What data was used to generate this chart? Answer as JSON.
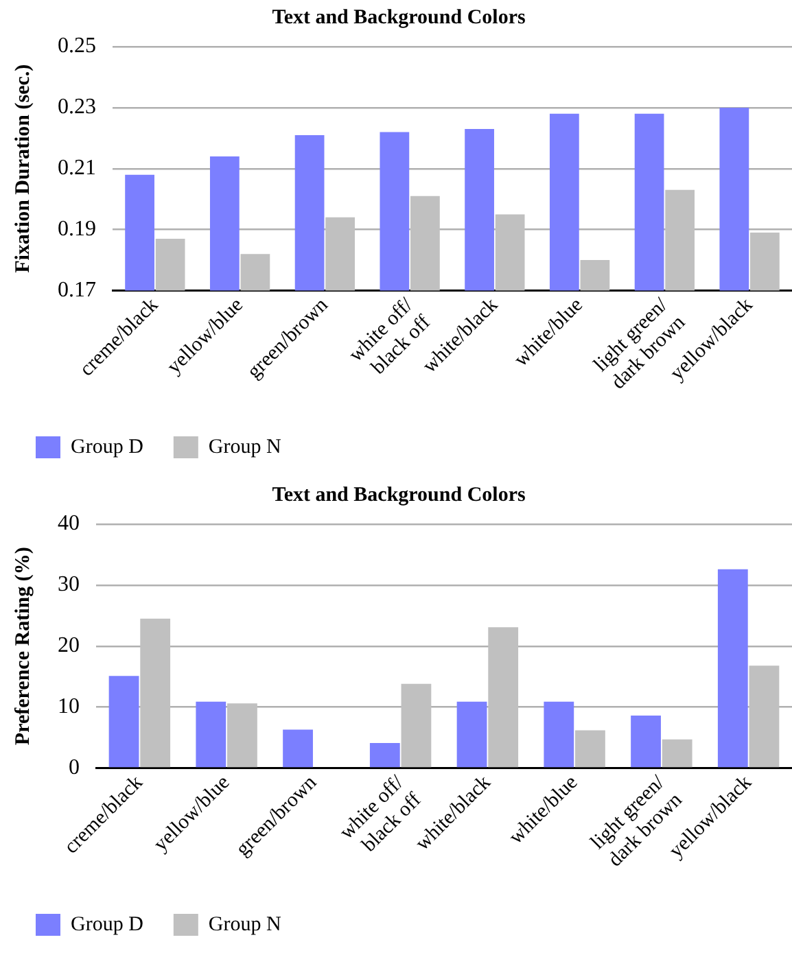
{
  "chart_data": [
    {
      "type": "bar",
      "title": "Text and Background Colors",
      "ylabel": "Fixation Duration (sec.)",
      "categories": [
        "creme/black",
        "yellow/blue",
        "green/brown",
        "white off/\nblack off",
        "white/black",
        "white/blue",
        "light green/\ndark brown",
        "yellow/black"
      ],
      "series": [
        {
          "name": "Group D",
          "color": "#7b7fff",
          "values": [
            0.208,
            0.214,
            0.221,
            0.222,
            0.223,
            0.228,
            0.228,
            0.23
          ]
        },
        {
          "name": "Group N",
          "color": "#c0c0c0",
          "values": [
            0.187,
            0.182,
            0.194,
            0.201,
            0.195,
            0.18,
            0.203,
            0.189
          ]
        }
      ],
      "ylim": [
        0.17,
        0.25
      ],
      "yticks": [
        0.17,
        0.19,
        0.21,
        0.23,
        0.25
      ],
      "grid": "y",
      "legend": "bottom left"
    },
    {
      "type": "bar",
      "title": "Text and Background Colors",
      "ylabel": "Preference Rating (%)",
      "categories": [
        "creme/black",
        "yellow/blue",
        "green/brown",
        "white off/\nblack off",
        "white/black",
        "white/blue",
        "light green/\ndark brown",
        "yellow/black"
      ],
      "series": [
        {
          "name": "Group D",
          "color": "#7b7fff",
          "values": [
            15.1,
            10.9,
            6.3,
            4.1,
            10.9,
            10.9,
            8.6,
            32.6
          ]
        },
        {
          "name": "Group N",
          "color": "#c0c0c0",
          "values": [
            24.5,
            10.6,
            0,
            13.8,
            23.1,
            6.2,
            4.7,
            16.8
          ]
        }
      ],
      "ylim": [
        0,
        40
      ],
      "yticks": [
        0,
        10,
        20,
        30,
        40
      ],
      "grid": "y",
      "legend": "bottom left"
    }
  ]
}
